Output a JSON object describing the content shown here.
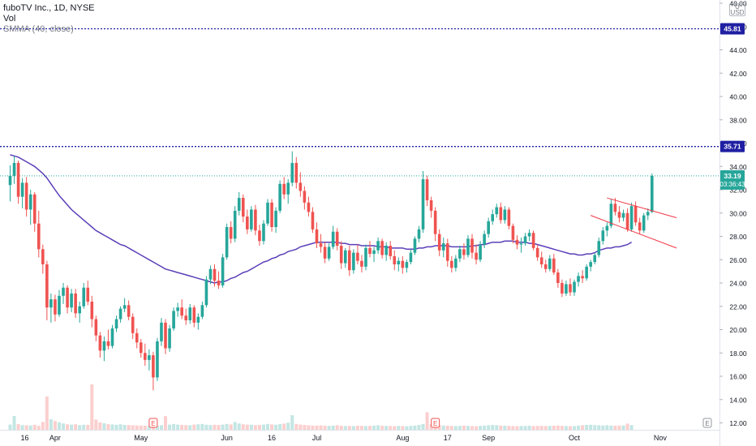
{
  "legend": {
    "symbol": "fuboTV Inc., 1D, NYSE",
    "volume": "Vol",
    "indicator": "SMMA (40, close)"
  },
  "currency_box": {
    "top": "U",
    "bottom": "USD"
  },
  "price_tags": {
    "top_line": "45.81",
    "mid_line": "35.71",
    "last_price": "33.19",
    "countdown": "03:36:43"
  },
  "colors": {
    "up": "#26a69a",
    "down": "#ef5350",
    "smma": "#5b3fb8",
    "level_line": "#1f1fa3",
    "channel": "#f23645",
    "last_price": "#26a69a"
  },
  "chart_data": {
    "type": "candlestick",
    "title": "fuboTV Inc., 1D, NYSE",
    "ylim": [
      11.2,
      48.0
    ],
    "y_ticks": [
      12.0,
      14.0,
      16.0,
      18.0,
      20.0,
      22.0,
      24.0,
      26.0,
      28.0,
      30.0,
      32.0,
      34.0,
      36.0,
      38.0,
      40.0,
      42.0,
      44.0,
      46.0,
      48.0
    ],
    "x_ticks": [
      {
        "label": "16",
        "index": 0
      },
      {
        "label": "Apr",
        "index": 11
      },
      {
        "label": "May",
        "index": 32
      },
      {
        "label": "Jun",
        "index": 53
      },
      {
        "label": "16",
        "index": 64
      },
      {
        "label": "Jul",
        "index": 75
      },
      {
        "label": "Aug",
        "index": 96
      },
      {
        "label": "17",
        "index": 107
      },
      {
        "label": "Sep",
        "index": 117
      },
      {
        "label": "Oct",
        "index": 138
      },
      {
        "label": "Nov",
        "index": 159
      }
    ],
    "ohlc": [
      [
        32.4,
        34.1,
        31.0,
        33.2
      ],
      [
        33.2,
        34.9,
        32.5,
        34.3
      ],
      [
        34.3,
        34.5,
        30.8,
        31.4
      ],
      [
        31.4,
        33.0,
        30.4,
        32.6
      ],
      [
        32.6,
        33.1,
        29.7,
        30.3
      ],
      [
        30.3,
        32.0,
        29.0,
        31.6
      ],
      [
        31.6,
        31.8,
        28.4,
        29.1
      ],
      [
        29.1,
        30.2,
        26.2,
        26.9
      ],
      [
        26.9,
        27.3,
        24.8,
        25.6
      ],
      [
        25.6,
        25.9,
        20.8,
        21.9
      ],
      [
        21.9,
        23.1,
        20.6,
        22.6
      ],
      [
        22.6,
        23.0,
        20.7,
        21.3
      ],
      [
        21.3,
        23.4,
        21.1,
        22.9
      ],
      [
        22.9,
        24.0,
        22.2,
        23.6
      ],
      [
        23.6,
        23.8,
        21.4,
        21.9
      ],
      [
        21.9,
        23.5,
        21.5,
        23.1
      ],
      [
        23.1,
        23.5,
        21.0,
        21.4
      ],
      [
        21.4,
        22.4,
        20.6,
        22.0
      ],
      [
        22.0,
        24.0,
        21.8,
        23.6
      ],
      [
        23.6,
        24.2,
        22.1,
        22.4
      ],
      [
        22.4,
        22.9,
        20.2,
        20.9
      ],
      [
        20.9,
        21.2,
        19.0,
        19.5
      ],
      [
        19.5,
        19.8,
        17.6,
        18.2
      ],
      [
        18.2,
        19.4,
        17.3,
        19.0
      ],
      [
        19.0,
        20.0,
        18.3,
        18.6
      ],
      [
        18.6,
        20.4,
        18.4,
        20.1
      ],
      [
        20.1,
        21.2,
        19.8,
        20.9
      ],
      [
        20.9,
        22.0,
        20.6,
        21.8
      ],
      [
        21.8,
        22.7,
        21.5,
        22.1
      ],
      [
        22.1,
        22.5,
        20.8,
        21.1
      ],
      [
        21.1,
        21.4,
        19.2,
        19.7
      ],
      [
        19.7,
        20.1,
        18.4,
        18.9
      ],
      [
        18.9,
        19.2,
        17.6,
        18.0
      ],
      [
        18.0,
        18.8,
        16.9,
        17.4
      ],
      [
        17.4,
        18.3,
        16.5,
        17.8
      ],
      [
        17.8,
        18.1,
        14.8,
        15.9
      ],
      [
        15.9,
        19.3,
        15.6,
        19.0
      ],
      [
        19.0,
        21.0,
        18.6,
        20.6
      ],
      [
        20.6,
        20.9,
        17.9,
        18.4
      ],
      [
        18.4,
        20.4,
        18.1,
        20.1
      ],
      [
        20.1,
        21.9,
        19.9,
        21.6
      ],
      [
        21.6,
        22.3,
        21.1,
        21.9
      ],
      [
        21.9,
        22.6,
        20.9,
        21.2
      ],
      [
        21.2,
        21.8,
        20.4,
        20.8
      ],
      [
        20.8,
        22.2,
        20.5,
        21.9
      ],
      [
        21.9,
        22.1,
        20.2,
        20.6
      ],
      [
        20.6,
        21.4,
        20.0,
        21.1
      ],
      [
        21.1,
        22.4,
        20.9,
        22.1
      ],
      [
        22.1,
        24.6,
        21.9,
        24.3
      ],
      [
        24.3,
        25.5,
        23.9,
        25.2
      ],
      [
        25.2,
        25.6,
        23.7,
        24.2
      ],
      [
        24.2,
        25.0,
        23.5,
        23.8
      ],
      [
        23.8,
        26.5,
        23.6,
        26.2
      ],
      [
        26.2,
        29.1,
        26.0,
        28.8
      ],
      [
        28.8,
        29.3,
        27.4,
        27.8
      ],
      [
        27.8,
        30.6,
        27.5,
        30.2
      ],
      [
        30.2,
        31.8,
        29.8,
        31.3
      ],
      [
        31.3,
        31.6,
        29.2,
        29.7
      ],
      [
        29.7,
        30.3,
        28.2,
        28.6
      ],
      [
        28.6,
        30.6,
        28.4,
        30.3
      ],
      [
        30.3,
        30.7,
        28.1,
        28.5
      ],
      [
        28.5,
        29.0,
        27.2,
        27.6
      ],
      [
        27.6,
        29.4,
        27.3,
        29.1
      ],
      [
        29.1,
        31.2,
        28.9,
        30.9
      ],
      [
        30.9,
        31.2,
        28.4,
        28.8
      ],
      [
        28.8,
        30.5,
        28.3,
        30.2
      ],
      [
        30.2,
        32.8,
        30.0,
        32.5
      ],
      [
        32.5,
        33.1,
        31.2,
        31.6
      ],
      [
        31.6,
        32.9,
        30.8,
        32.6
      ],
      [
        32.6,
        35.3,
        32.3,
        34.3
      ],
      [
        34.3,
        34.8,
        32.1,
        32.6
      ],
      [
        32.6,
        33.5,
        31.4,
        31.9
      ],
      [
        31.9,
        32.3,
        30.3,
        30.9
      ],
      [
        30.9,
        31.4,
        29.7,
        30.1
      ],
      [
        30.1,
        30.5,
        28.3,
        28.6
      ],
      [
        28.6,
        29.2,
        27.0,
        27.4
      ],
      [
        27.4,
        28.2,
        26.6,
        27.1
      ],
      [
        27.1,
        27.5,
        25.7,
        26.1
      ],
      [
        26.1,
        27.4,
        25.9,
        27.1
      ],
      [
        27.1,
        28.9,
        26.9,
        28.4
      ],
      [
        28.4,
        28.7,
        26.8,
        27.2
      ],
      [
        27.2,
        27.6,
        25.2,
        25.7
      ],
      [
        25.7,
        27.0,
        25.3,
        26.8
      ],
      [
        26.8,
        27.2,
        24.6,
        25.1
      ],
      [
        25.1,
        26.9,
        24.8,
        26.6
      ],
      [
        26.6,
        27.3,
        25.6,
        25.9
      ],
      [
        25.9,
        26.4,
        24.9,
        25.4
      ],
      [
        25.4,
        27.3,
        25.1,
        27.0
      ],
      [
        27.0,
        27.6,
        26.2,
        26.5
      ],
      [
        26.5,
        27.1,
        25.8,
        26.8
      ],
      [
        26.8,
        27.9,
        26.5,
        27.6
      ],
      [
        27.6,
        27.8,
        26.1,
        26.4
      ],
      [
        26.4,
        27.5,
        25.9,
        27.2
      ],
      [
        27.2,
        27.6,
        26.0,
        26.3
      ],
      [
        26.3,
        26.8,
        25.1,
        25.6
      ],
      [
        25.6,
        26.2,
        25.0,
        25.9
      ],
      [
        25.9,
        26.3,
        24.8,
        25.3
      ],
      [
        25.3,
        26.0,
        24.9,
        25.8
      ],
      [
        25.8,
        26.9,
        25.6,
        26.6
      ],
      [
        26.6,
        28.0,
        26.4,
        27.8
      ],
      [
        27.8,
        28.9,
        27.5,
        28.6
      ],
      [
        28.6,
        33.6,
        28.3,
        32.9
      ],
      [
        32.9,
        33.2,
        30.6,
        31.1
      ],
      [
        31.1,
        31.4,
        29.6,
        30.2
      ],
      [
        30.2,
        30.5,
        27.6,
        28.2
      ],
      [
        28.2,
        28.6,
        26.3,
        26.8
      ],
      [
        26.8,
        27.9,
        26.2,
        27.4
      ],
      [
        27.4,
        27.8,
        25.4,
        25.9
      ],
      [
        25.9,
        26.3,
        24.9,
        25.3
      ],
      [
        25.3,
        26.4,
        25.0,
        26.1
      ],
      [
        26.1,
        27.2,
        25.8,
        26.9
      ],
      [
        26.9,
        27.4,
        26.0,
        26.4
      ],
      [
        26.4,
        28.1,
        26.2,
        27.8
      ],
      [
        27.8,
        28.2,
        26.1,
        26.6
      ],
      [
        26.6,
        27.3,
        25.6,
        26.0
      ],
      [
        26.0,
        27.6,
        25.8,
        27.3
      ],
      [
        27.3,
        28.5,
        27.0,
        28.2
      ],
      [
        28.2,
        29.6,
        27.9,
        29.3
      ],
      [
        29.3,
        30.3,
        29.0,
        29.9
      ],
      [
        29.9,
        30.8,
        29.6,
        30.5
      ],
      [
        30.5,
        30.9,
        29.1,
        29.4
      ],
      [
        29.4,
        30.6,
        29.1,
        30.3
      ],
      [
        30.3,
        30.5,
        28.6,
        28.9
      ],
      [
        28.9,
        29.1,
        27.4,
        27.7
      ],
      [
        27.7,
        28.1,
        26.9,
        27.3
      ],
      [
        27.3,
        27.9,
        26.6,
        27.4
      ],
      [
        27.4,
        28.3,
        27.2,
        28.0
      ],
      [
        28.0,
        28.6,
        27.6,
        28.3
      ],
      [
        28.3,
        28.5,
        26.8,
        27.0
      ],
      [
        27.0,
        27.3,
        25.9,
        26.2
      ],
      [
        26.2,
        26.7,
        25.3,
        25.6
      ],
      [
        25.6,
        26.0,
        24.9,
        25.2
      ],
      [
        25.2,
        26.4,
        25.0,
        26.1
      ],
      [
        26.1,
        26.5,
        24.7,
        24.9
      ],
      [
        24.9,
        25.2,
        23.6,
        24.0
      ],
      [
        24.0,
        24.3,
        22.8,
        23.1
      ],
      [
        23.1,
        24.2,
        22.9,
        23.9
      ],
      [
        23.9,
        24.4,
        22.9,
        23.2
      ],
      [
        23.2,
        24.3,
        22.9,
        24.1
      ],
      [
        24.1,
        24.9,
        23.7,
        24.6
      ],
      [
        24.6,
        25.1,
        24.0,
        24.4
      ],
      [
        24.4,
        25.6,
        24.2,
        25.4
      ],
      [
        25.4,
        26.0,
        25.0,
        25.8
      ],
      [
        25.8,
        26.6,
        25.6,
        26.4
      ],
      [
        26.4,
        27.9,
        26.2,
        27.6
      ],
      [
        27.6,
        28.8,
        27.3,
        28.5
      ],
      [
        28.5,
        29.2,
        28.0,
        28.9
      ],
      [
        28.9,
        31.2,
        28.7,
        30.8
      ],
      [
        30.8,
        31.3,
        29.8,
        30.1
      ],
      [
        30.1,
        30.6,
        29.2,
        29.6
      ],
      [
        29.6,
        30.3,
        29.3,
        30.0
      ],
      [
        30.0,
        30.4,
        28.4,
        28.6
      ],
      [
        28.6,
        30.9,
        28.4,
        30.6
      ],
      [
        30.6,
        31.0,
        28.9,
        29.2
      ],
      [
        29.2,
        29.6,
        28.2,
        28.5
      ],
      [
        28.5,
        30.0,
        28.3,
        29.8
      ],
      [
        29.8,
        30.4,
        29.4,
        30.1
      ],
      [
        30.1,
        33.4,
        30.0,
        33.19
      ]
    ],
    "volume": [
      3.2,
      8.5,
      3.5,
      2.9,
      2.8,
      2.6,
      3.1,
      2.4,
      4.8,
      20.5,
      6.5,
      5.4,
      4.6,
      3.9,
      3.4,
      3.2,
      3.4,
      2.9,
      3.1,
      3.0,
      28.0,
      6.3,
      4.6,
      4.0,
      3.5,
      3.3,
      3.1,
      3.4,
      3.0,
      2.9,
      2.8,
      2.7,
      2.6,
      2.5,
      2.4,
      2.6,
      2.5,
      2.8,
      8.4,
      3.2,
      3.6,
      3.2,
      3.0,
      2.9,
      2.8,
      3.2,
      3.4,
      3.6,
      3.1,
      2.9,
      3.1,
      3.0,
      3.2,
      3.6,
      3.3,
      4.8,
      3.9,
      3.4,
      3.2,
      3.1,
      2.9,
      3.0,
      3.2,
      3.6,
      3.3,
      3.1,
      3.5,
      3.8,
      4.4,
      9.0,
      3.6,
      3.2,
      3.0,
      2.8,
      2.6,
      2.6,
      2.7,
      2.5,
      2.4,
      2.6,
      2.8,
      2.5,
      2.3,
      2.4,
      2.3,
      2.5,
      2.4,
      2.3,
      2.4,
      2.6,
      2.8,
      2.5,
      2.4,
      2.3,
      2.2,
      2.4,
      2.3,
      2.2,
      2.4,
      2.6,
      3.0,
      3.6,
      10.8,
      3.6,
      3.1,
      2.9,
      2.6,
      2.5,
      2.4,
      2.3,
      2.4,
      2.6,
      2.4,
      2.3,
      2.2,
      2.4,
      2.6,
      2.8,
      3.0,
      2.8,
      2.6,
      2.5,
      2.4,
      2.3,
      2.2,
      2.3,
      2.4,
      2.5,
      2.3,
      2.4,
      2.4,
      2.3,
      2.4,
      2.5,
      2.6,
      2.4,
      2.3,
      2.2,
      2.3,
      2.6,
      2.8,
      3.0,
      3.1,
      2.9,
      2.8,
      2.6,
      2.8,
      2.6,
      2.5,
      2.6,
      2.7,
      3.8,
      2.9
    ],
    "smma": [
      35.0,
      34.9,
      34.8,
      34.6,
      34.4,
      34.2,
      34.0,
      33.7,
      33.4,
      33.0,
      32.5,
      32.0,
      31.5,
      31.1,
      30.7,
      30.3,
      30.0,
      29.7,
      29.4,
      29.1,
      28.8,
      28.5,
      28.3,
      28.1,
      27.9,
      27.7,
      27.5,
      27.3,
      27.2,
      27.0,
      26.8,
      26.6,
      26.4,
      26.2,
      26.0,
      25.8,
      25.6,
      25.4,
      25.2,
      25.1,
      25.0,
      24.9,
      24.8,
      24.7,
      24.6,
      24.5,
      24.4,
      24.3,
      24.2,
      24.1,
      24.0,
      24.1,
      24.1,
      24.2,
      24.4,
      24.5,
      24.7,
      24.9,
      25.0,
      25.2,
      25.4,
      25.6,
      25.8,
      25.9,
      26.1,
      26.2,
      26.4,
      26.5,
      26.7,
      26.8,
      26.9,
      27.1,
      27.2,
      27.3,
      27.4,
      27.5,
      27.5,
      27.5,
      27.5,
      27.5,
      27.5,
      27.4,
      27.4,
      27.3,
      27.3,
      27.3,
      27.2,
      27.2,
      27.2,
      27.2,
      27.1,
      27.1,
      27.1,
      27.0,
      27.0,
      27.0,
      27.0,
      26.9,
      26.9,
      26.9,
      27.0,
      27.0,
      27.1,
      27.1,
      27.2,
      27.2,
      27.2,
      27.2,
      27.1,
      27.1,
      27.1,
      27.1,
      27.1,
      27.2,
      27.2,
      27.3,
      27.3,
      27.4,
      27.5,
      27.5,
      27.5,
      27.6,
      27.6,
      27.6,
      27.5,
      27.5,
      27.5,
      27.4,
      27.4,
      27.3,
      27.2,
      27.1,
      27.0,
      26.9,
      26.8,
      26.7,
      26.6,
      26.5,
      26.5,
      26.4,
      26.4,
      26.5,
      26.5,
      26.6,
      26.8,
      26.9,
      27.0,
      27.0,
      27.1,
      27.1,
      27.2,
      27.3,
      27.5
    ],
    "levels": [
      {
        "price": 45.81,
        "label": "45.81"
      },
      {
        "price": 35.71,
        "label": "35.71"
      }
    ],
    "channel": [
      {
        "from": {
          "index": 146,
          "price": 31.3
        },
        "to": {
          "index": 163,
          "price": 29.6
        }
      },
      {
        "from": {
          "index": 142,
          "price": 29.8
        },
        "to": {
          "index": 163,
          "price": 27.0
        }
      }
    ],
    "earnings_markers": [
      {
        "index": 35,
        "label": "E"
      },
      {
        "index": 104,
        "label": "E"
      },
      {
        "index": 165,
        "label": "E"
      }
    ]
  }
}
